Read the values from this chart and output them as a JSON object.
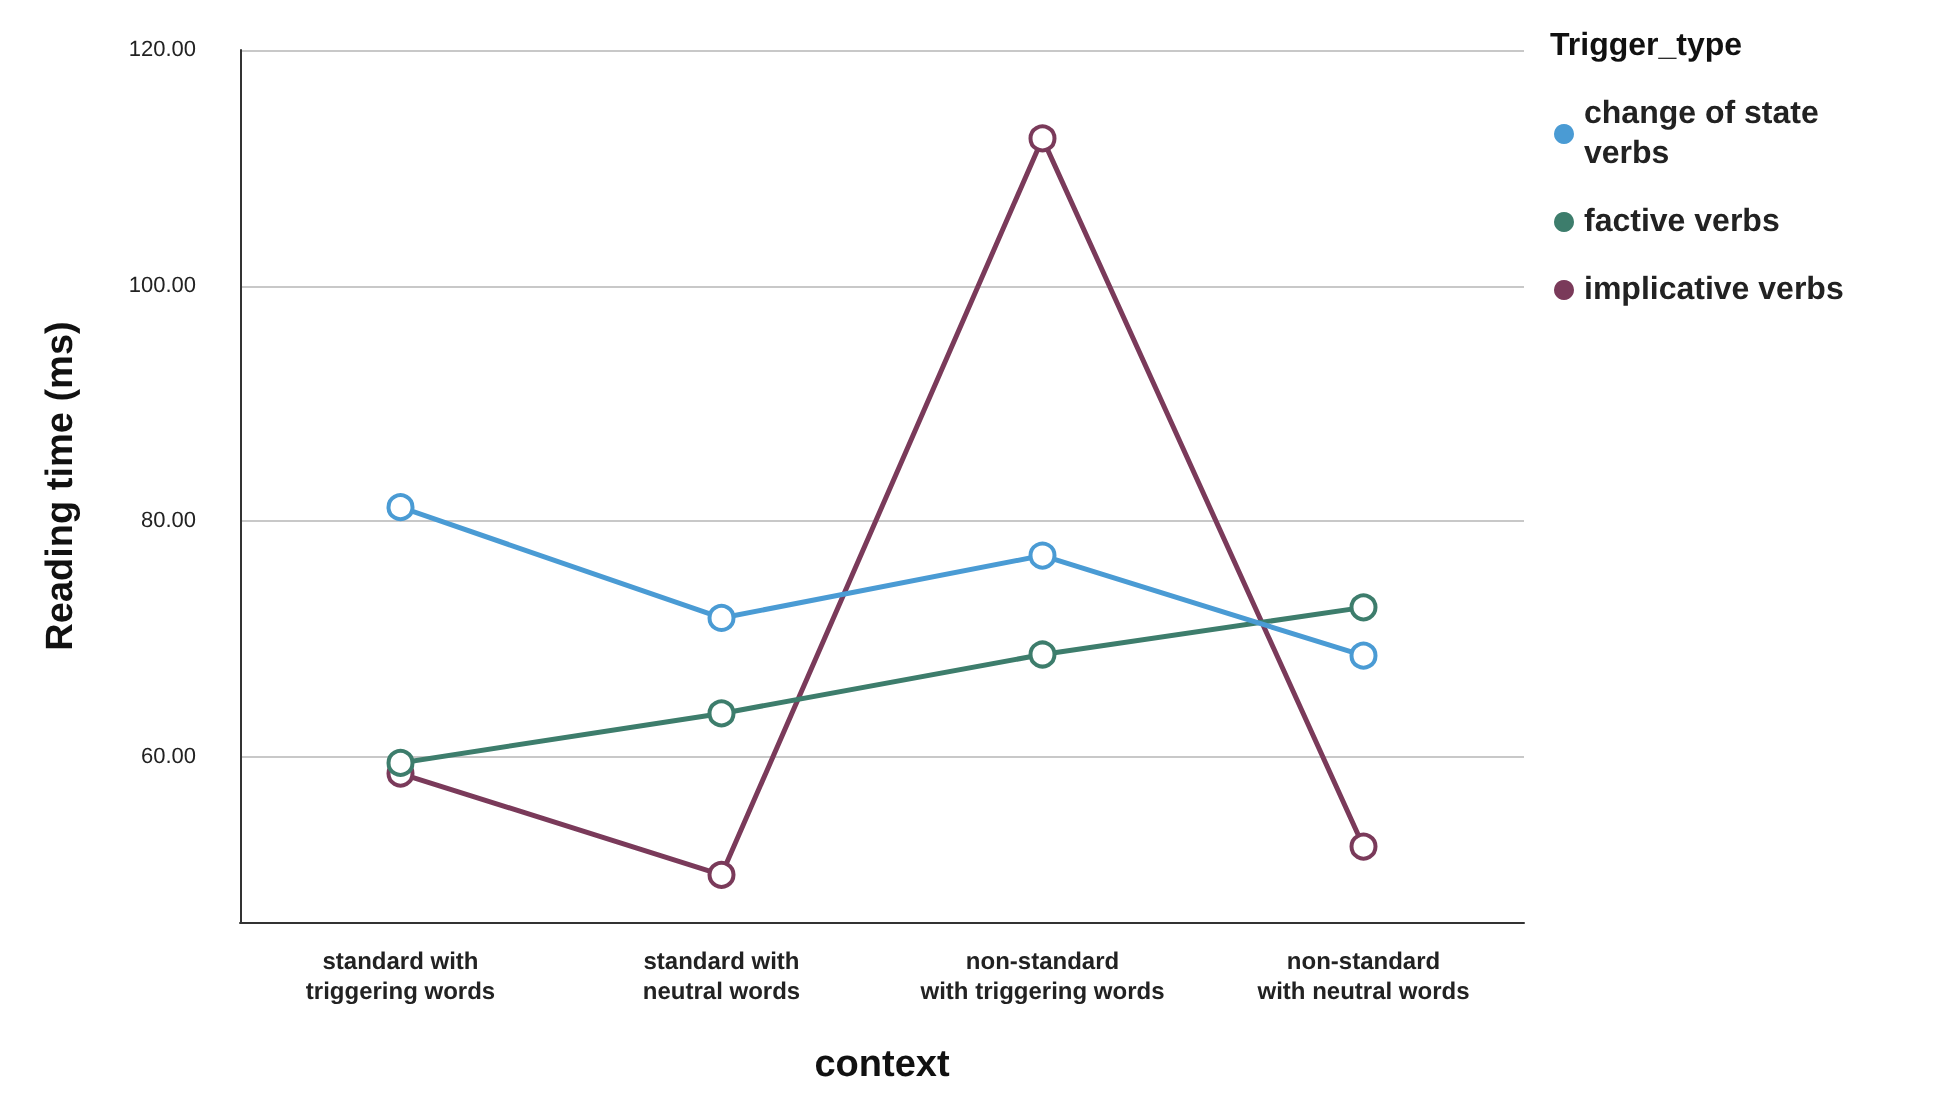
{
  "chart_data": {
    "type": "line",
    "xlabel": "context",
    "ylabel": "Reading time (ms)",
    "legend_title": "Trigger_type",
    "categories": [
      "standard with\ntriggering words",
      "standard with\nneutral words",
      "non-standard\nwith triggering words",
      "non-standard\nwith neutral words"
    ],
    "series": [
      {
        "name": "change of state verbs",
        "color": "#4a9bd4",
        "values": [
          81.2,
          71.8,
          77.1,
          68.6
        ]
      },
      {
        "name": "factive verbs",
        "color": "#3d7d6c",
        "values": [
          59.5,
          63.7,
          68.7,
          72.7
        ]
      },
      {
        "name": "implicative verbs",
        "color": "#7a3a5a",
        "values": [
          58.6,
          50.0,
          112.5,
          52.4
        ]
      }
    ],
    "ylim": [
      46,
      120
    ],
    "yticks": [
      {
        "value": 60,
        "label": "60.00"
      },
      {
        "value": 80,
        "label": "80.00"
      },
      {
        "value": 100,
        "label": "100.00"
      },
      {
        "value": 120,
        "label": "120.00"
      }
    ],
    "grid": "y",
    "legend": "top right",
    "marker": "circle",
    "line_style": "solid"
  }
}
